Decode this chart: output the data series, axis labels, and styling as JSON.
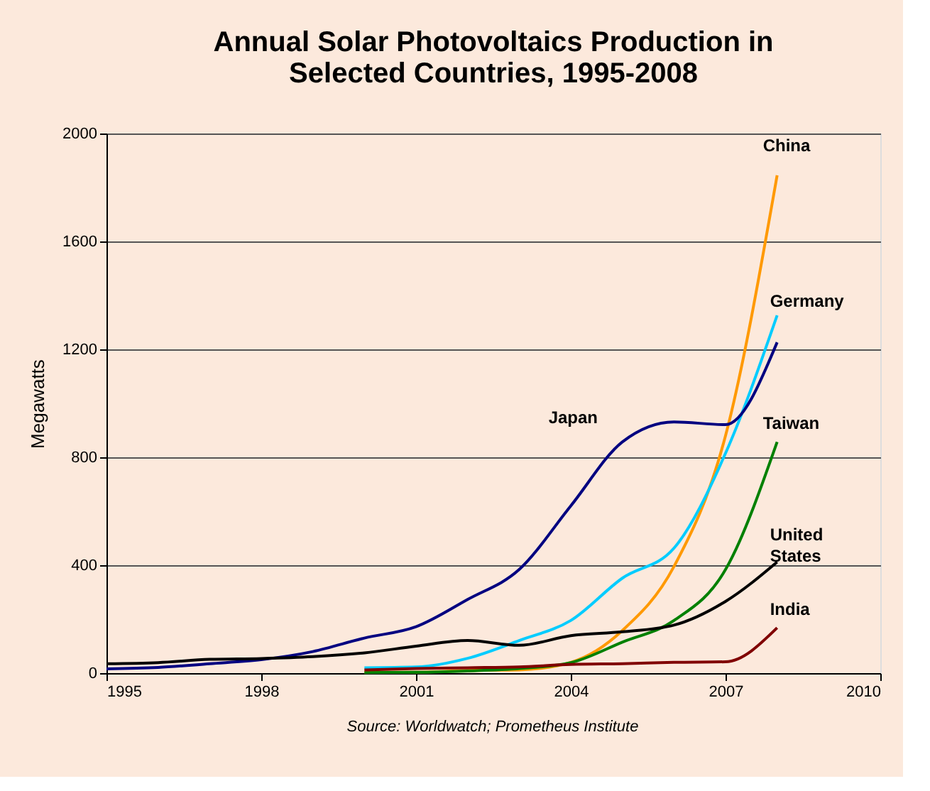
{
  "chart_data": {
    "type": "line",
    "title": [
      "Annual Solar Photovoltaics Production in",
      "Selected Countries, 1995-2008"
    ],
    "ylabel": "Megawatts",
    "x": [
      1995,
      1996,
      1997,
      1998,
      1999,
      2000,
      2001,
      2002,
      2003,
      2004,
      2005,
      2006,
      2007,
      2008
    ],
    "series": [
      {
        "name": "China",
        "color": "#ff9900",
        "values": [
          null,
          null,
          null,
          null,
          null,
          3,
          3,
          10,
          12,
          40,
          158,
          395,
          880,
          1845
        ]
      },
      {
        "name": "Germany",
        "color": "#00ccff",
        "values": [
          null,
          null,
          null,
          null,
          null,
          20,
          23,
          55,
          121,
          195,
          352,
          463,
          815,
          1326
        ]
      },
      {
        "name": "Japan",
        "color": "#000080",
        "values": [
          16,
          21,
          35,
          50,
          80,
          130,
          172,
          273,
          384,
          620,
          857,
          931,
          921,
          1226
        ]
      },
      {
        "name": "Taiwan",
        "color": "#008000",
        "values": [
          null,
          null,
          null,
          null,
          null,
          2,
          3,
          8,
          17,
          39,
          115,
          195,
          384,
          857
        ]
      },
      {
        "name": "United States",
        "color": "#000000",
        "values": [
          35,
          39,
          51,
          54,
          61,
          75,
          100,
          121,
          103,
          139,
          153,
          178,
          266,
          412
        ]
      },
      {
        "name": "India",
        "color": "#800000",
        "values": [
          null,
          null,
          null,
          null,
          null,
          12,
          17,
          20,
          23,
          32,
          35,
          40,
          42,
          168
        ]
      }
    ],
    "xlim": [
      1995,
      2010
    ],
    "xticks": [
      1995,
      1998,
      2001,
      2004,
      2007,
      2010
    ],
    "ylim": [
      0,
      2000
    ],
    "yticks": [
      0,
      400,
      800,
      1200,
      1600,
      2000
    ],
    "grid": "y",
    "legend": false,
    "marker": "none",
    "line_style": "solid",
    "annotations": [
      "Source: Worldwatch; Prometheus Institute"
    ]
  }
}
